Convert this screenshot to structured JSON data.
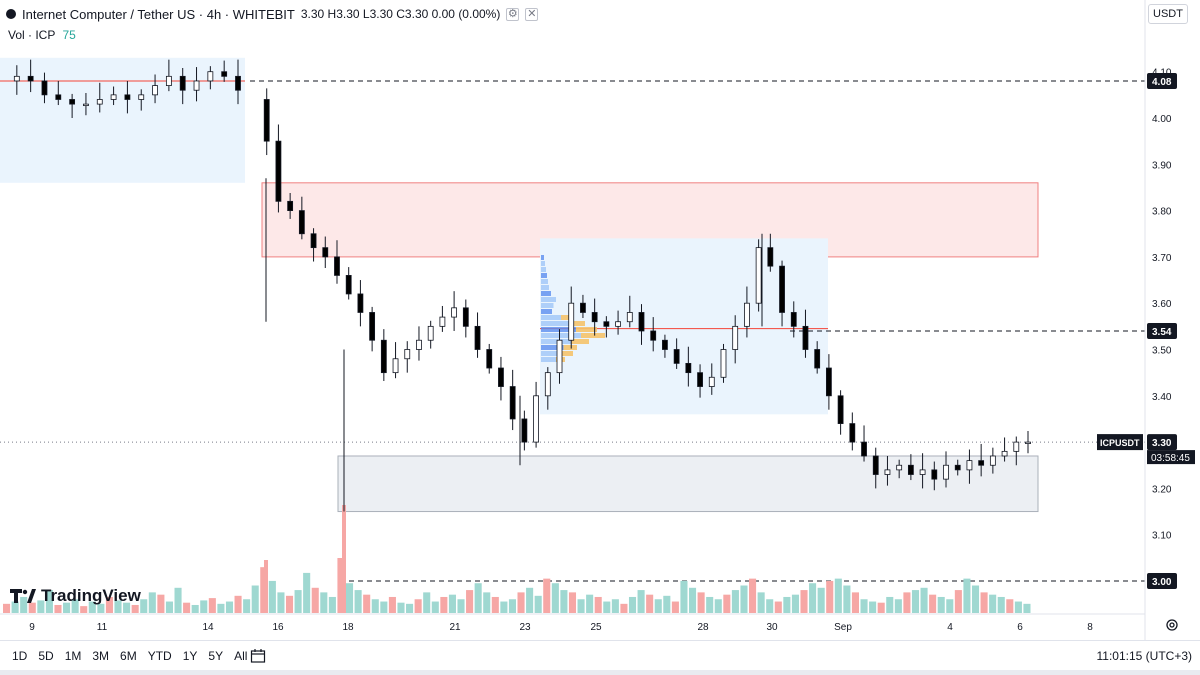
{
  "header": {
    "title": "Internet Computer / Tether US · 4h · WHITEBIT",
    "ohlc": "3.30 H3.30 L3.30 C3.30 0.00 (0.00%)"
  },
  "volume_label": "Vol · ICP",
  "volume_value": "75",
  "currency": "USDT",
  "logo_text": "TradingView",
  "symbol_tag": "ICPUSDT",
  "countdown": "03:58:45",
  "timeframes": [
    "1D",
    "5D",
    "1M",
    "3M",
    "6M",
    "YTD",
    "1Y",
    "5Y",
    "All"
  ],
  "clock": "11:01:15 (UTC+3)",
  "colors": {
    "up": "#26a69a",
    "down": "#ef5350",
    "bull_body": "#ffffff",
    "bear_body": "#000000"
  },
  "chart_data": {
    "type": "candlestick",
    "y_ticks": [
      "4.10",
      "4.00",
      "3.90",
      "3.80",
      "3.70",
      "3.60",
      "3.50",
      "3.40",
      "3.20",
      "3.10"
    ],
    "y_range": [
      2.99,
      4.13
    ],
    "x_ticks": [
      "9",
      "11",
      "14",
      "16",
      "18",
      "21",
      "23",
      "25",
      "28",
      "30",
      "Sep",
      "4",
      "6",
      "8"
    ],
    "price_labels": [
      "4.08",
      "3.54",
      "3.30",
      "3.00"
    ],
    "levels": [
      4.08,
      3.54,
      3.0
    ],
    "current_price": 3.3,
    "zones": [
      {
        "kind": "red",
        "from": 3.7,
        "to": 3.86
      },
      {
        "kind": "grey",
        "from": 3.15,
        "to": 3.27
      },
      {
        "kind": "blue",
        "from": 3.86,
        "to": 4.13
      },
      {
        "kind": "blue",
        "from": 3.36,
        "to": 3.74
      }
    ],
    "segments": [
      [
        4.08,
        4.09,
        4.08,
        4.05,
        4.04,
        4.03,
        4.03,
        4.04,
        4.05,
        4.04,
        4.05,
        4.07,
        4.09,
        4.06,
        4.08,
        4.1,
        4.09,
        4.06
      ],
      [
        4.04,
        3.95,
        3.82,
        3.8,
        3.75,
        3.72,
        3.7,
        3.66,
        3.62,
        3.58,
        3.52,
        3.45,
        3.48,
        3.5,
        3.52,
        3.55,
        3.57,
        3.59,
        3.55,
        3.5,
        3.46,
        3.42,
        3.35,
        3.3,
        3.4,
        3.45,
        3.52,
        3.6,
        3.58,
        3.56,
        3.55,
        3.56,
        3.58,
        3.54,
        3.52,
        3.5,
        3.47,
        3.45,
        3.42,
        3.44,
        3.5,
        3.55,
        3.6,
        3.72,
        3.68,
        3.58,
        3.55,
        3.5,
        3.46,
        3.4,
        3.34,
        3.3,
        3.27,
        3.23,
        3.24,
        3.25,
        3.23,
        3.24,
        3.22,
        3.25,
        3.24,
        3.26,
        3.25,
        3.27,
        3.28,
        3.3,
        3.3
      ]
    ],
    "volumes": [
      8,
      10,
      14,
      9,
      11,
      20,
      7,
      9,
      12,
      6,
      10,
      8,
      14,
      11,
      9,
      7,
      12,
      18,
      16,
      10,
      22,
      9,
      7,
      11,
      13,
      8,
      10,
      15,
      12,
      24,
      40,
      28,
      18,
      15,
      20,
      35,
      22,
      18,
      14,
      48,
      26,
      20,
      16,
      12,
      10,
      14,
      9,
      8,
      12,
      18,
      10,
      14,
      16,
      12,
      20,
      26,
      18,
      14,
      10,
      12,
      18,
      22,
      15,
      30,
      26,
      20,
      18,
      12,
      16,
      14,
      10,
      12,
      8,
      14,
      20,
      16,
      12,
      15,
      10,
      28,
      22,
      18,
      14,
      12,
      16,
      20,
      24,
      30,
      18,
      12,
      10,
      14,
      16,
      20,
      26,
      22,
      28,
      30,
      24,
      18,
      12,
      10,
      9,
      14,
      12,
      18,
      20,
      22,
      16,
      14,
      12,
      20,
      30,
      24,
      18,
      16,
      14,
      12,
      10,
      8
    ]
  }
}
